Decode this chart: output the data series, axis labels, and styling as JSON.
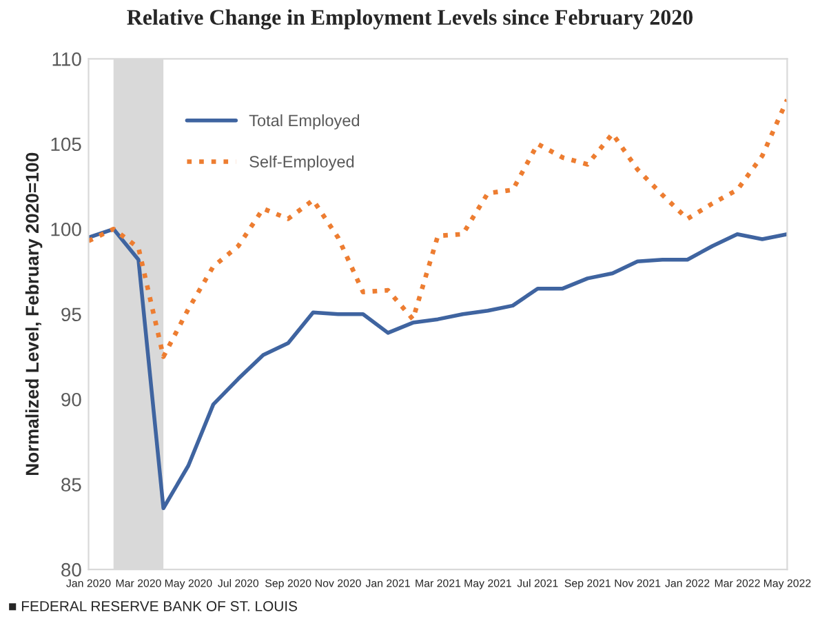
{
  "chart_data": {
    "type": "line",
    "title": "Relative Change in Employment Levels since February 2020",
    "ylabel": "Normalized Level, February 2020=100",
    "categories": [
      "Jan 2020",
      null,
      "Mar 2020",
      null,
      "May 2020",
      null,
      "Jul 2020",
      null,
      "Sep 2020",
      null,
      "Nov 2020",
      null,
      "Jan 2021",
      null,
      "Mar 2021",
      null,
      "May 2021",
      null,
      "Jul 2021",
      null,
      "Sep 2021",
      null,
      "Nov 2021",
      null,
      "Jan 2022",
      null,
      "Mar 2022",
      null,
      "May 2022"
    ],
    "series": [
      {
        "name": "Total Employed",
        "color": "#3f64a0",
        "line_style": "solid",
        "values": [
          99.5,
          100,
          98.2,
          83.6,
          86.1,
          89.7,
          91.2,
          92.6,
          93.3,
          95.1,
          95.0,
          95.0,
          93.9,
          94.5,
          94.7,
          95.0,
          95.2,
          95.5,
          96.5,
          96.5,
          97.1,
          97.4,
          98.1,
          98.2,
          98.2,
          99.0,
          99.7,
          99.4,
          99.7
        ]
      },
      {
        "name": "Self-Employed",
        "color": "#ed7d31",
        "line_style": "dotted",
        "values": [
          99.3,
          100,
          98.9,
          92.5,
          95.3,
          97.8,
          99.0,
          101.2,
          100.6,
          101.7,
          99.5,
          96.3,
          96.4,
          94.7,
          99.6,
          99.7,
          102.1,
          102.3,
          105.0,
          104.2,
          103.8,
          105.6,
          103.5,
          102.0,
          100.6,
          101.5,
          102.3,
          104.3,
          107.6
        ]
      }
    ],
    "ylim": [
      80,
      110
    ],
    "yticks": [
      80,
      85,
      90,
      95,
      100,
      105,
      110
    ],
    "legend": "top left",
    "grid": false,
    "annotations": [
      "■ FEDERAL RESERVE BANK OF ST. LOUIS"
    ]
  }
}
